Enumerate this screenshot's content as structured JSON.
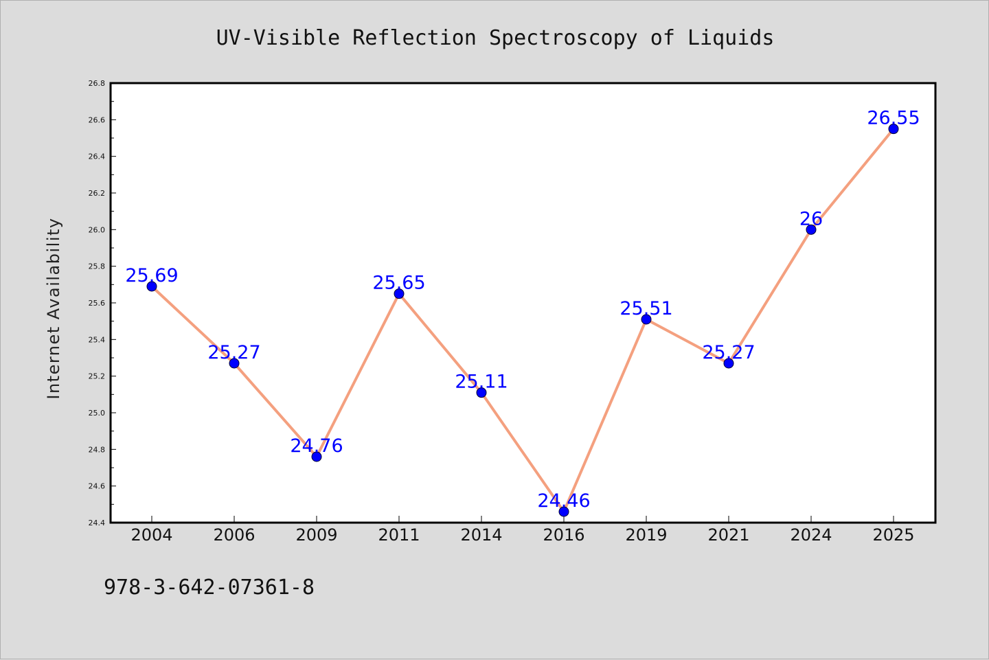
{
  "chart_data": {
    "type": "line",
    "title": "UV-Visible Reflection Spectroscopy of Liquids",
    "xlabel": "",
    "ylabel": "Internet Availability",
    "categories": [
      "2004",
      "2006",
      "2009",
      "2011",
      "2014",
      "2016",
      "2019",
      "2021",
      "2024",
      "2025"
    ],
    "values": [
      25.69,
      25.27,
      24.76,
      25.65,
      25.11,
      24.46,
      25.51,
      25.27,
      26.0,
      26.55
    ],
    "data_labels": [
      "25.69",
      "25.27",
      "24.76",
      "25.65",
      "25.11",
      "24.46",
      "25.51",
      "25.27",
      "26",
      "26.55"
    ],
    "ylim": [
      24.4,
      26.8
    ],
    "yticks": [
      "24.4",
      "24.6",
      "24.8",
      "25.0",
      "25.2",
      "25.4",
      "25.6",
      "25.8",
      "26.0",
      "26.2",
      "26.4",
      "26.6",
      "26.8"
    ],
    "grid": false,
    "legend": "none",
    "line_color": "#f4a07f",
    "marker_color": "#0000ff",
    "label_color": "#0000ff"
  },
  "footer": {
    "isbn": "978-3-642-07361-8"
  }
}
